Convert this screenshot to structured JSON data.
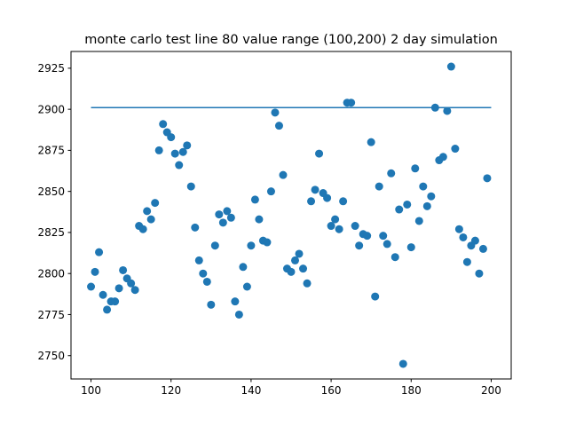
{
  "chart_data": {
    "type": "scatter",
    "title": "monte carlo test line 80 value range (100,200) 2 day simulation",
    "xlabel": "",
    "ylabel": "",
    "xlim": [
      95,
      205
    ],
    "ylim": [
      2735.8,
      2935.2
    ],
    "xticks": [
      100,
      120,
      140,
      160,
      180,
      200
    ],
    "yticks": [
      2750,
      2775,
      2800,
      2825,
      2850,
      2875,
      2900,
      2925
    ],
    "grid": false,
    "colors": {
      "series": "#1f77b4"
    },
    "series": [
      {
        "type": "scatter",
        "x": [
          100,
          101,
          102,
          103,
          104,
          105,
          106,
          107,
          108,
          109,
          110,
          111,
          112,
          113,
          114,
          115,
          116,
          117,
          118,
          119,
          120,
          121,
          122,
          123,
          124,
          125,
          126,
          127,
          128,
          129,
          130,
          131,
          132,
          133,
          134,
          135,
          136,
          137,
          138,
          139,
          140,
          141,
          142,
          143,
          144,
          145,
          146,
          147,
          148,
          149,
          150,
          151,
          152,
          153,
          154,
          155,
          156,
          157,
          158,
          159,
          160,
          161,
          162,
          163,
          164,
          165,
          166,
          167,
          168,
          169,
          170,
          171,
          172,
          173,
          174,
          175,
          176,
          177,
          178,
          179,
          180,
          181,
          182,
          183,
          184,
          185,
          186,
          187,
          188,
          189,
          190,
          191,
          192,
          193,
          194,
          195,
          196,
          197,
          198,
          199
        ],
        "y": [
          2792,
          2801,
          2813,
          2787,
          2778,
          2783,
          2783,
          2791,
          2802,
          2797,
          2794,
          2790,
          2829,
          2827,
          2838,
          2833,
          2843,
          2875,
          2891,
          2886,
          2883,
          2873,
          2866,
          2874,
          2878,
          2853,
          2828,
          2808,
          2800,
          2795,
          2781,
          2817,
          2836,
          2831,
          2838,
          2834,
          2783,
          2775,
          2804,
          2792,
          2817,
          2845,
          2833,
          2820,
          2819,
          2850,
          2898,
          2890,
          2860,
          2803,
          2801,
          2808,
          2812,
          2803,
          2794,
          2844,
          2851,
          2873,
          2849,
          2846,
          2829,
          2833,
          2827,
          2844,
          2904,
          2904,
          2829,
          2817,
          2824,
          2823,
          2880,
          2786,
          2853,
          2823,
          2818,
          2861,
          2810,
          2839,
          2745,
          2842,
          2816,
          2864,
          2832,
          2853,
          2841,
          2847,
          2901,
          2869,
          2871,
          2899,
          2926,
          2876,
          2827,
          2822,
          2807,
          2817,
          2820,
          2800,
          2815,
          2858
        ]
      },
      {
        "type": "line",
        "x": [
          100,
          200
        ],
        "y": [
          2901,
          2901
        ]
      }
    ]
  }
}
